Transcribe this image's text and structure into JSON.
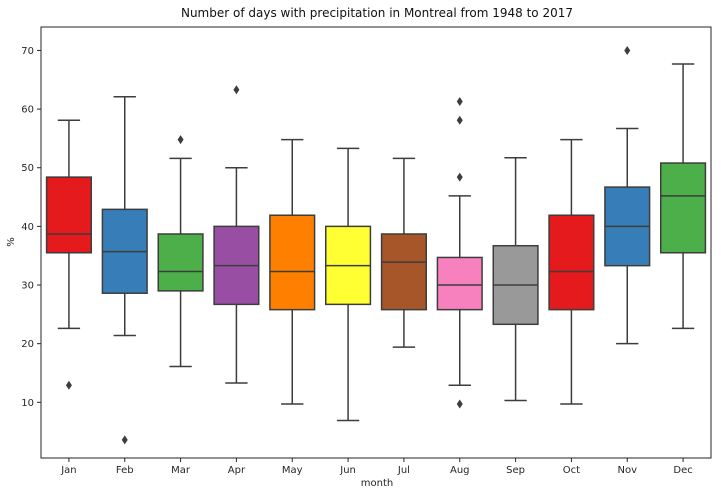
{
  "chart_data": {
    "type": "box",
    "title": "Number of days with precipitation in Montreal from 1948 to 2017",
    "xlabel": "month",
    "ylabel": "%",
    "ylim": [
      0.5,
      74
    ],
    "yticks": [
      10,
      20,
      30,
      40,
      50,
      60,
      70
    ],
    "ytick_labels": [
      "10",
      "20",
      "30",
      "40",
      "50",
      "60",
      "70"
    ],
    "grid": false,
    "categories": [
      "Jan",
      "Feb",
      "Mar",
      "Apr",
      "May",
      "Jun",
      "Jul",
      "Aug",
      "Sep",
      "Oct",
      "Nov",
      "Dec"
    ],
    "boxes": [
      {
        "category": "Jan",
        "whislo": 22.6,
        "q1": 35.5,
        "med": 38.7,
        "q3": 48.4,
        "whishi": 58.1,
        "fliers": [
          12.9
        ],
        "color": "#e41a1c"
      },
      {
        "category": "Feb",
        "whislo": 21.4,
        "q1": 28.6,
        "med": 35.7,
        "q3": 42.9,
        "whishi": 62.1,
        "fliers": [
          3.6
        ],
        "color": "#377eb8"
      },
      {
        "category": "Mar",
        "whislo": 16.1,
        "q1": 29.0,
        "med": 32.3,
        "q3": 38.7,
        "whishi": 51.6,
        "fliers": [
          54.8
        ],
        "color": "#4daf4a"
      },
      {
        "category": "Apr",
        "whislo": 13.3,
        "q1": 26.7,
        "med": 33.3,
        "q3": 40.0,
        "whishi": 50.0,
        "fliers": [
          63.3
        ],
        "color": "#984ea3"
      },
      {
        "category": "May",
        "whislo": 9.7,
        "q1": 25.8,
        "med": 32.3,
        "q3": 41.9,
        "whishi": 54.8,
        "fliers": [],
        "color": "#ff7f00"
      },
      {
        "category": "Jun",
        "whislo": 6.9,
        "q1": 26.7,
        "med": 33.3,
        "q3": 40.0,
        "whishi": 53.3,
        "fliers": [],
        "color": "#ffff33"
      },
      {
        "category": "Jul",
        "whislo": 19.4,
        "q1": 25.8,
        "med": 33.9,
        "q3": 38.7,
        "whishi": 51.6,
        "fliers": [],
        "color": "#a65628"
      },
      {
        "category": "Aug",
        "whislo": 12.9,
        "q1": 25.8,
        "med": 30.0,
        "q3": 34.7,
        "whishi": 45.2,
        "fliers": [
          48.4,
          58.1,
          61.3,
          9.7
        ],
        "color": "#f781bf"
      },
      {
        "category": "Sep",
        "whislo": 10.3,
        "q1": 23.3,
        "med": 30.0,
        "q3": 36.7,
        "whishi": 51.7,
        "fliers": [],
        "color": "#999999"
      },
      {
        "category": "Oct",
        "whislo": 9.7,
        "q1": 25.8,
        "med": 32.3,
        "q3": 41.9,
        "whishi": 54.8,
        "fliers": [],
        "color": "#e41a1c"
      },
      {
        "category": "Nov",
        "whislo": 20.0,
        "q1": 33.3,
        "med": 40.0,
        "q3": 46.7,
        "whishi": 56.7,
        "fliers": [
          70.0
        ],
        "color": "#377eb8"
      },
      {
        "category": "Dec",
        "whislo": 22.6,
        "q1": 35.5,
        "med": 45.2,
        "q3": 50.8,
        "whishi": 67.7,
        "fliers": [],
        "color": "#4daf4a"
      }
    ]
  }
}
